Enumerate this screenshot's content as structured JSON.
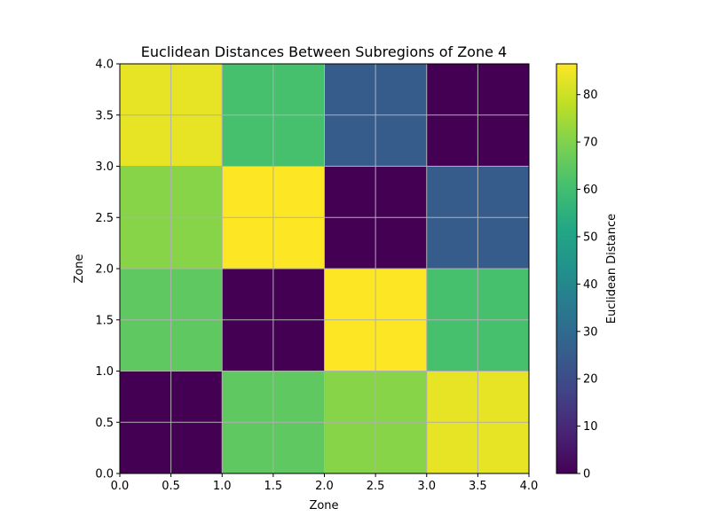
{
  "chart_data": {
    "type": "heatmap",
    "title": "Euclidean Distances Between Subregions of Zone 4",
    "xlabel": "Zone",
    "ylabel": "Zone",
    "xlim": [
      0,
      4
    ],
    "ylim": [
      0,
      4
    ],
    "x_ticks": [
      "0.0",
      "0.5",
      "1.0",
      "1.5",
      "2.0",
      "2.5",
      "3.0",
      "3.5",
      "4.0"
    ],
    "y_ticks": [
      "0.0",
      "0.5",
      "1.0",
      "1.5",
      "2.0",
      "2.5",
      "3.0",
      "3.5",
      "4.0"
    ],
    "grid": true,
    "colormap": "viridis",
    "colorbar": {
      "label": "Euclidean Distance",
      "min": 0,
      "max": 86.5,
      "ticks": [
        "0",
        "10",
        "20",
        "30",
        "40",
        "50",
        "60",
        "70",
        "80"
      ]
    },
    "rows_top_to_bottom": [
      [
        83.5,
        61,
        25,
        0
      ],
      [
        71,
        86.5,
        0,
        25
      ],
      [
        65,
        0,
        86.5,
        61
      ],
      [
        0,
        65,
        71,
        83.5
      ]
    ]
  }
}
